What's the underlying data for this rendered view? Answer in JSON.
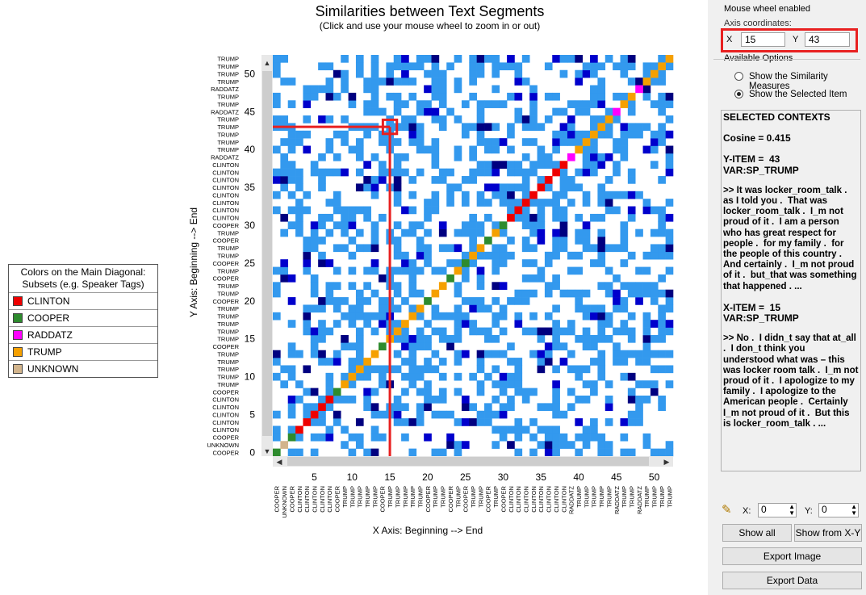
{
  "header": {
    "title": "Similarities between Text Segments",
    "subtitle": "(Click and use your mouse wheel to zoom in or out)"
  },
  "legend": {
    "title_line1": "Colors on the Main Diagonal:",
    "title_line2": "Subsets (e.g. Speaker Tags)",
    "items": [
      {
        "label": "CLINTON",
        "color": "#ee0000"
      },
      {
        "label": "COOPER",
        "color": "#2e8b2e"
      },
      {
        "label": "RADDATZ",
        "color": "#ff00ff"
      },
      {
        "label": "TRUMP",
        "color": "#f5a000"
      },
      {
        "label": "UNKNOWN",
        "color": "#d2b48c"
      }
    ]
  },
  "axes": {
    "y_title": "Y Axis: Beginning --> End",
    "x_title": "X Axis: Beginning --> End",
    "x_ticks": [
      "5",
      "10",
      "15",
      "20",
      "25",
      "30",
      "35",
      "40",
      "45",
      "50"
    ],
    "y_ticks": [
      "0",
      "5",
      "10",
      "15",
      "20",
      "25",
      "30",
      "35",
      "40",
      "45",
      "50"
    ],
    "segment_labels": [
      "COOPER",
      "UNKNOWN",
      "COOPER",
      "CLINTON",
      "CLINTON",
      "CLINTON",
      "CLINTON",
      "CLINTON",
      "COOPER",
      "TRUMP",
      "TRUMP",
      "TRUMP",
      "TRUMP",
      "TRUMP",
      "COOPER",
      "TRUMP",
      "TRUMP",
      "TRUMP",
      "TRUMP",
      "TRUMP",
      "COOPER",
      "TRUMP",
      "TRUMP",
      "COOPER",
      "TRUMP",
      "COOPER",
      "TRUMP",
      "TRUMP",
      "COOPER",
      "TRUMP",
      "COOPER",
      "CLINTON",
      "CLINTON",
      "CLINTON",
      "CLINTON",
      "CLINTON",
      "CLINTON",
      "CLINTON",
      "CLINTON",
      "RADDATZ",
      "TRUMP",
      "TRUMP",
      "TRUMP",
      "TRUMP",
      "TRUMP",
      "RADDATZ",
      "TRUMP",
      "TRUMP",
      "RADDATZ",
      "TRUMP",
      "TRUMP",
      "TRUMP",
      "TRUMP"
    ]
  },
  "colors": {
    "similar": "#3399ee",
    "strong": "#0000cc",
    "very_strong": "#000080",
    "highlight": "#e82020"
  },
  "selection": {
    "x": 15,
    "y": 43
  },
  "panel": {
    "mouse_wheel": "Mouse wheel enabled",
    "axis_coords": "Axis coordinates:",
    "x_label": "X",
    "x_value": "15",
    "y_label": "Y",
    "y_value": "43",
    "options_label": "Available Options",
    "option1": "Show the Similarity Measures",
    "option2": "Show the Selected Item",
    "contexts_title": "SELECTED CONTEXTS",
    "cosine": "Cosine = 0.415",
    "y_item": "Y-ITEM =  43\nVAR:SP_TRUMP",
    "y_text": ">> It was locker_room_talk . as I told you .  That was locker_room_talk .  I_m not proud of it .  I am a person who has great respect for people .  for my family .  for the people of this country .  And certainly .  I_m not proud of it .  but_that was something that happened . ...",
    "x_item": "X-ITEM =  15\nVAR:SP_TRUMP",
    "x_text": ">> No .  I didn_t say that at_all .  I don_t think you understood what was – this was locker room talk .  I_m not proud of it .  I apologize to my family .  I apologize to the American people .  Certainly I_m not proud of it .  But this is locker_room_talk . ...",
    "spin_x_label": "X:",
    "spin_x_value": "0",
    "spin_y_label": "Y:",
    "spin_y_value": "0",
    "btn_show_all": "Show all",
    "btn_show_xy": "Show from X-Y",
    "btn_export_image": "Export Image",
    "btn_export_data": "Export Data"
  }
}
